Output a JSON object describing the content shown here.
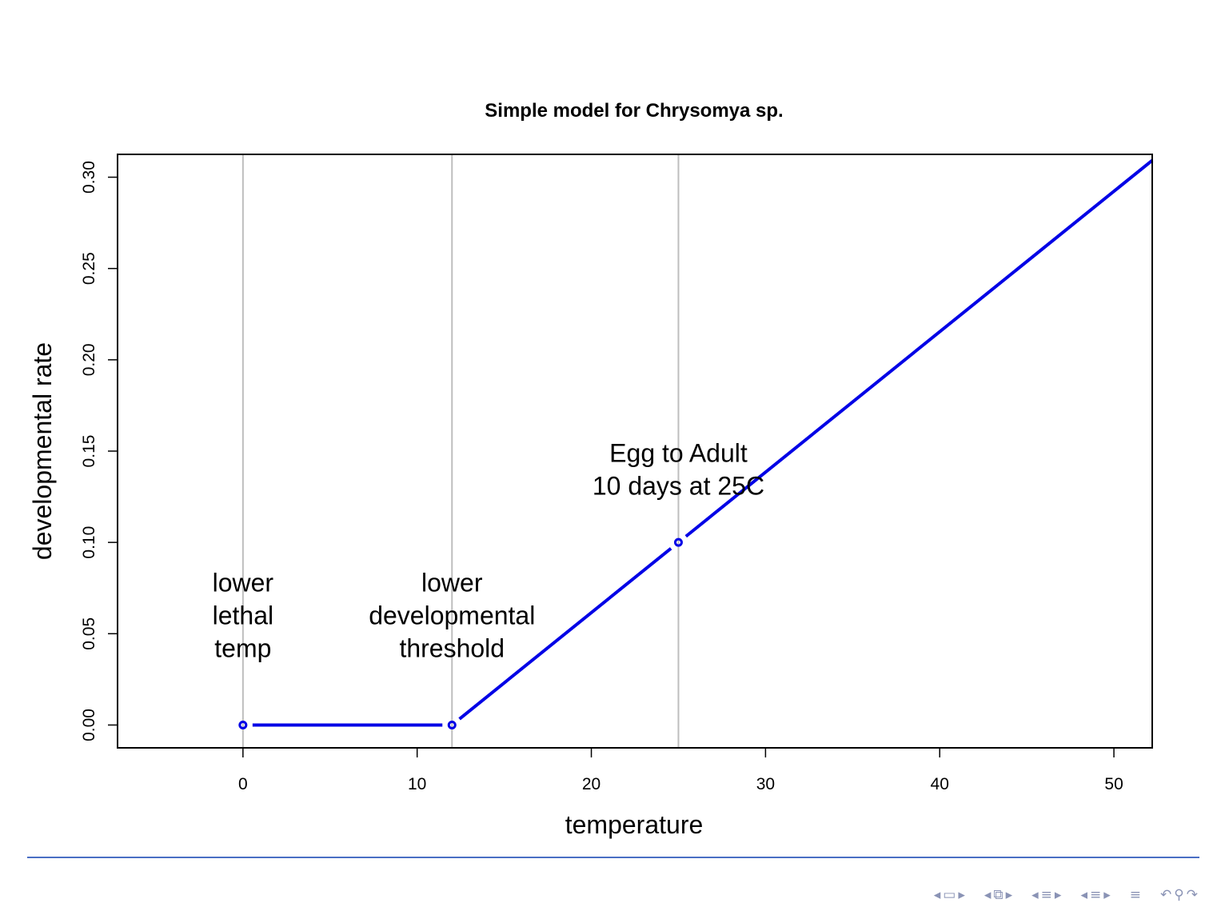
{
  "colors": {
    "series": "#0000e6",
    "vline": "#bebebe",
    "axis": "#000000",
    "footer_rule": "#4a6fc4",
    "nav": "#8a93b5"
  },
  "chart_data": {
    "type": "line",
    "title": "Simple model for Chrysomya sp.",
    "xlabel": "temperature",
    "ylabel": "developmental rate",
    "xlim": [
      -7.2,
      52.2
    ],
    "ylim": [
      -0.0125,
      0.3125
    ],
    "x_ticks": [
      0,
      10,
      20,
      30,
      40,
      50
    ],
    "y_ticks": [
      0.0,
      0.05,
      0.1,
      0.15,
      0.2,
      0.25,
      0.3
    ],
    "grid": false,
    "series": [
      {
        "points": [
          [
            0,
            0.0
          ],
          [
            12,
            0.0
          ],
          [
            25,
            0.1
          ],
          [
            52.2,
            0.3092
          ]
        ],
        "markers": [
          [
            0,
            0.0
          ],
          [
            12,
            0.0
          ],
          [
            25,
            0.1
          ]
        ]
      }
    ],
    "vlines": [
      0,
      12,
      25
    ],
    "annotations": [
      {
        "x": 0,
        "y": 0.06,
        "lines": [
          "lower",
          "lethal",
          "temp"
        ]
      },
      {
        "x": 12,
        "y": 0.06,
        "lines": [
          "lower",
          "developmental",
          "threshold"
        ]
      },
      {
        "x": 25,
        "y": 0.14,
        "lines": [
          "Egg to Adult",
          "10 days at 25C"
        ]
      }
    ]
  },
  "nav": {
    "icons": [
      "frame-left",
      "frame",
      "frame-right",
      "subsection-left",
      "subsection",
      "subsection-right",
      "section-left",
      "section",
      "section-right",
      "section2-left",
      "section2",
      "section2-right",
      "align",
      "search"
    ]
  }
}
